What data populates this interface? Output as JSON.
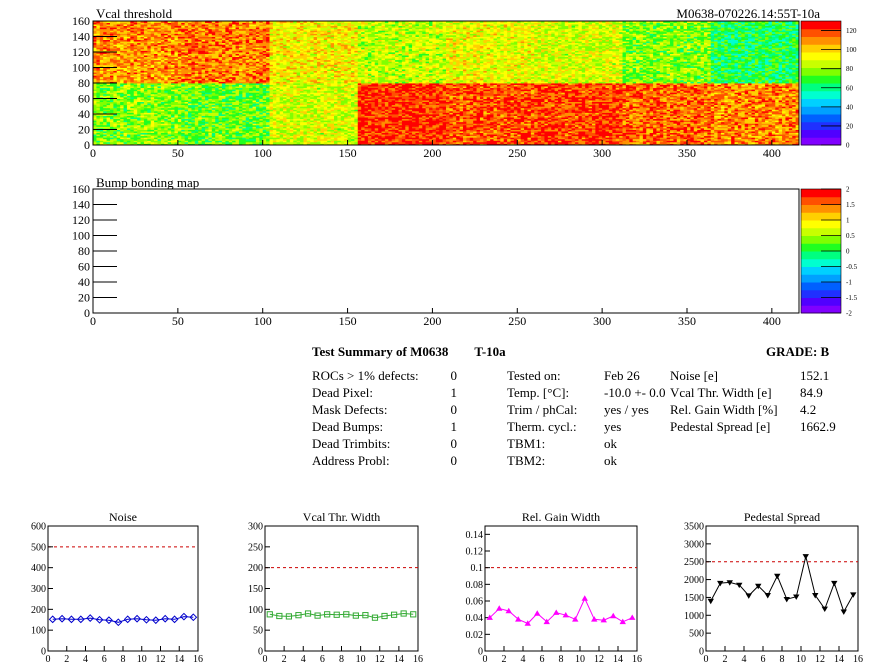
{
  "top_map": {
    "title": "Vcal threshold",
    "right_title": "M0638-070226.14:55T-10a",
    "y_ticks": [
      "0",
      "20",
      "40",
      "60",
      "80",
      "100",
      "120",
      "140",
      "160"
    ],
    "x_ticks": [
      "0",
      "50",
      "100",
      "150",
      "200",
      "250",
      "300",
      "350",
      "400"
    ],
    "palette_ticks": [
      "0",
      "20",
      "40",
      "60",
      "80",
      "100",
      "120"
    ]
  },
  "bump_map": {
    "title": "Bump bonding map",
    "y_ticks": [
      "0",
      "20",
      "40",
      "60",
      "80",
      "100",
      "120",
      "140",
      "160"
    ],
    "x_ticks": [
      "0",
      "50",
      "100",
      "150",
      "200",
      "250",
      "300",
      "350",
      "400"
    ],
    "palette_ticks": [
      "-2",
      "-1.5",
      "-1",
      "-0.5",
      "0",
      "0.5",
      "1",
      "1.5",
      "2"
    ]
  },
  "summary": {
    "title": "Test Summary of M0638",
    "temp_tag": "T-10a",
    "grade": "GRADE:  B",
    "col1": [
      {
        "label": "ROCs > 1% defects:",
        "value": "0"
      },
      {
        "label": "Dead Pixel:",
        "value": "1"
      },
      {
        "label": "Mask Defects:",
        "value": "0"
      },
      {
        "label": "Dead Bumps:",
        "value": "1"
      },
      {
        "label": "Dead Trimbits:",
        "value": "0"
      },
      {
        "label": "Address Probl:",
        "value": "0"
      }
    ],
    "col2": [
      {
        "label": "Tested on:",
        "value": "Feb 26"
      },
      {
        "label": "Temp. [°C]:",
        "value": "-10.0 +- 0.0"
      },
      {
        "label": "Trim / phCal:",
        "value": "yes / yes"
      },
      {
        "label": "Therm. cycl.:",
        "value": "yes"
      },
      {
        "label": "TBM1:",
        "value": "ok"
      },
      {
        "label": "TBM2:",
        "value": "ok"
      }
    ],
    "col3": [
      {
        "label": "Noise [e]",
        "value": "152.1"
      },
      {
        "label": "Vcal Thr. Width [e]",
        "value": "84.9"
      },
      {
        "label": "Rel. Gain Width [%]",
        "value": "4.2"
      },
      {
        "label": "Pedestal Spread [e]",
        "value": "1662.9"
      }
    ]
  },
  "chart_data": [
    {
      "type": "heatmap",
      "title": "Vcal threshold",
      "xlim": [
        0,
        416
      ],
      "ylim": [
        0,
        160
      ],
      "zlim": [
        0,
        130
      ],
      "blocks_top": [
        110,
        112,
        95,
        85,
        92,
        88,
        78,
        65
      ],
      "blocks_bottom": [
        78,
        75,
        88,
        122,
        118,
        120,
        115,
        110
      ],
      "block_width": 52,
      "row_split": 80
    },
    {
      "type": "heatmap",
      "title": "Bump bonding map",
      "xlim": [
        0,
        416
      ],
      "ylim": [
        0,
        160
      ],
      "zlim": [
        -2,
        2
      ]
    },
    {
      "type": "scatter",
      "title": "Noise",
      "x": [
        0,
        1,
        2,
        3,
        4,
        5,
        6,
        7,
        8,
        9,
        10,
        11,
        12,
        13,
        14,
        15
      ],
      "values": [
        152,
        155,
        152,
        152,
        158,
        150,
        148,
        138,
        152,
        155,
        150,
        148,
        155,
        152,
        165,
        162
      ],
      "xlim": [
        0,
        16
      ],
      "ylim": [
        0,
        600
      ],
      "limit_line": 500,
      "x_ticks": [
        "0",
        "2",
        "4",
        "6",
        "8",
        "10",
        "12",
        "14",
        "16"
      ],
      "y_ticks": [
        "0",
        "100",
        "200",
        "300",
        "400",
        "500",
        "600"
      ],
      "color": "#0000cc",
      "marker": "diamond"
    },
    {
      "type": "scatter",
      "title": "Vcal Thr. Width",
      "x": [
        0,
        1,
        2,
        3,
        4,
        5,
        6,
        7,
        8,
        9,
        10,
        11,
        12,
        13,
        14,
        15
      ],
      "values": [
        88,
        84,
        83,
        86,
        90,
        85,
        88,
        87,
        88,
        85,
        86,
        80,
        84,
        87,
        90,
        88
      ],
      "xlim": [
        0,
        16
      ],
      "ylim": [
        0,
        300
      ],
      "limit_line": 200,
      "x_ticks": [
        "0",
        "2",
        "4",
        "6",
        "8",
        "10",
        "12",
        "14",
        "16"
      ],
      "y_ticks": [
        "0",
        "50",
        "100",
        "150",
        "200",
        "250",
        "300"
      ],
      "color": "#33aa33",
      "marker": "square"
    },
    {
      "type": "line",
      "title": "Rel. Gain Width",
      "x": [
        0,
        1,
        2,
        3,
        4,
        5,
        6,
        7,
        8,
        9,
        10,
        11,
        12,
        13,
        14,
        15
      ],
      "values": [
        0.04,
        0.051,
        0.048,
        0.038,
        0.033,
        0.045,
        0.035,
        0.046,
        0.043,
        0.038,
        0.063,
        0.038,
        0.037,
        0.042,
        0.035,
        0.04
      ],
      "xlim": [
        0,
        16
      ],
      "ylim": [
        0,
        0.15
      ],
      "limit_line": 0.1,
      "x_ticks": [
        "0",
        "2",
        "4",
        "6",
        "8",
        "10",
        "12",
        "14",
        "16"
      ],
      "y_ticks": [
        "0",
        "0.02",
        "0.04",
        "0.06",
        "0.08",
        "0.1",
        "0.12",
        "0.14"
      ],
      "color": "#ff00ff",
      "marker": "triangle"
    },
    {
      "type": "line",
      "title": "Pedestal Spread",
      "x": [
        0,
        1,
        2,
        3,
        4,
        5,
        6,
        7,
        8,
        9,
        10,
        11,
        12,
        13,
        14,
        15
      ],
      "values": [
        1400,
        1900,
        1920,
        1850,
        1550,
        1820,
        1560,
        2100,
        1450,
        1520,
        2650,
        1560,
        1180,
        1900,
        1100,
        1580
      ],
      "xlim": [
        0,
        16
      ],
      "ylim": [
        0,
        3500
      ],
      "limit_line": 2500,
      "x_ticks": [
        "0",
        "2",
        "4",
        "6",
        "8",
        "10",
        "12",
        "14",
        "16"
      ],
      "y_ticks": [
        "0",
        "500",
        "1000",
        "1500",
        "2000",
        "2500",
        "3000",
        "3500"
      ],
      "color": "#000000",
      "marker": "triangle-down"
    }
  ]
}
